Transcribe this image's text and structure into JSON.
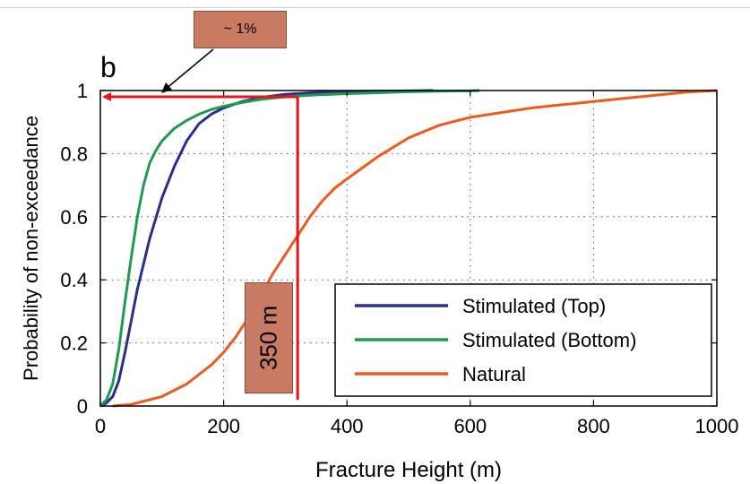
{
  "chart_data": {
    "type": "line",
    "panel_label": "b",
    "xlabel": "Fracture Height  (m)",
    "ylabel": "Probability of non-exceedance",
    "xlim": [
      0,
      1000
    ],
    "ylim": [
      0,
      1
    ],
    "xticks": [
      0,
      200,
      400,
      600,
      800,
      1000
    ],
    "yticks": [
      0,
      0.2,
      0.4,
      0.6,
      0.8,
      1
    ],
    "grid": true,
    "legend_position": "lower-right",
    "series": [
      {
        "name": "Stimulated (Top)",
        "color": "#2b2f8c",
        "x": [
          0,
          10,
          20,
          30,
          40,
          50,
          60,
          70,
          80,
          100,
          120,
          140,
          160,
          180,
          200,
          230,
          260,
          300,
          350,
          400,
          450,
          500,
          540
        ],
        "y": [
          0,
          0.01,
          0.03,
          0.08,
          0.17,
          0.27,
          0.37,
          0.45,
          0.53,
          0.66,
          0.76,
          0.84,
          0.895,
          0.925,
          0.945,
          0.965,
          0.978,
          0.988,
          0.994,
          0.997,
          0.998,
          0.999,
          1.0
        ]
      },
      {
        "name": "Stimulated (Bottom)",
        "color": "#1f9a52",
        "x": [
          0,
          10,
          20,
          30,
          40,
          50,
          60,
          70,
          80,
          90,
          100,
          120,
          140,
          160,
          180,
          200,
          230,
          260,
          300,
          350,
          400,
          450,
          500,
          550,
          600,
          615
        ],
        "y": [
          0,
          0.02,
          0.07,
          0.18,
          0.33,
          0.47,
          0.6,
          0.7,
          0.77,
          0.81,
          0.84,
          0.88,
          0.905,
          0.925,
          0.94,
          0.95,
          0.962,
          0.972,
          0.98,
          0.986,
          0.99,
          0.993,
          0.996,
          0.998,
          0.999,
          1.0
        ]
      },
      {
        "name": "Natural",
        "color": "#f05a1e",
        "x": [
          20,
          50,
          80,
          100,
          120,
          140,
          160,
          180,
          200,
          220,
          240,
          260,
          280,
          300,
          320,
          340,
          360,
          380,
          400,
          450,
          500,
          550,
          600,
          650,
          700,
          750,
          800,
          850,
          900,
          950,
          1000
        ],
        "y": [
          0,
          0.005,
          0.02,
          0.03,
          0.05,
          0.07,
          0.1,
          0.13,
          0.17,
          0.22,
          0.28,
          0.35,
          0.42,
          0.48,
          0.54,
          0.6,
          0.65,
          0.69,
          0.72,
          0.79,
          0.85,
          0.89,
          0.915,
          0.93,
          0.945,
          0.955,
          0.965,
          0.975,
          0.985,
          0.995,
          1.0
        ]
      }
    ],
    "annotations": {
      "percent_label": "~ 1%",
      "height_label": "350 m",
      "vertical_marker_x": 320,
      "horizontal_marker_y": 0.98
    }
  }
}
